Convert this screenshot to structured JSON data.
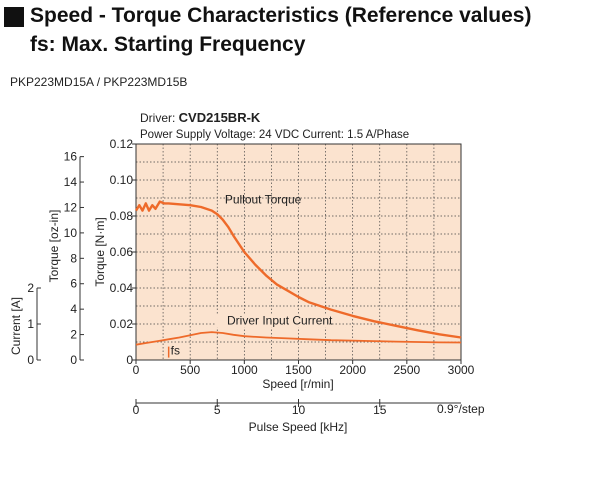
{
  "header": {
    "title_line1": "Speed - Torque Characteristics (Reference values)",
    "title_line2": "fs: Max. Starting Frequency"
  },
  "model_label": "PKP223MD15A / PKP223MD15B",
  "driver": {
    "prefix": "Driver: ",
    "name": "CVD215BR-K"
  },
  "conditions": "Power Supply Voltage: 24 VDC  Current: 1.5 A/Phase",
  "colors": {
    "plot_bg": "#fbe3cf",
    "curve": "#ee6a2a",
    "grid": "#444444"
  },
  "chart_data": {
    "type": "line",
    "xlabel": "Speed [r/min]",
    "x2label": "Pulse Speed [kHz]",
    "x2_unit_note": "0.9°/step",
    "ylabel_left": "Torque [N·m]",
    "ylabel_oz": "Torque [oz-in]",
    "ylabel_current": "Current [A]",
    "xlim": [
      0,
      3000
    ],
    "ylim": [
      0,
      0.12
    ],
    "x_ticks": [
      "0",
      "500",
      "1000",
      "1500",
      "2000",
      "2500",
      "3000"
    ],
    "y_ticks": [
      "0",
      "0.02",
      "0.04",
      "0.06",
      "0.08",
      "0.10",
      "0.12"
    ],
    "oz_ticks": [
      "0",
      "2",
      "4",
      "6",
      "8",
      "10",
      "12",
      "14",
      "16"
    ],
    "current_ticks": [
      "0",
      "1",
      "2"
    ],
    "x2_ticks": [
      "0",
      "5",
      "10",
      "15"
    ],
    "grid": true,
    "series": [
      {
        "name": "Pullout Torque",
        "x": [
          0,
          30,
          60,
          90,
          120,
          150,
          180,
          220,
          260,
          300,
          400,
          500,
          600,
          700,
          750,
          800,
          850,
          900,
          1000,
          1100,
          1200,
          1300,
          1400,
          1500,
          1600,
          1800,
          2000,
          2200,
          2400,
          2600,
          2800,
          3000
        ],
        "y": [
          0.083,
          0.086,
          0.083,
          0.087,
          0.083,
          0.086,
          0.084,
          0.088,
          0.087,
          0.087,
          0.0865,
          0.086,
          0.085,
          0.083,
          0.081,
          0.078,
          0.074,
          0.069,
          0.06,
          0.053,
          0.047,
          0.042,
          0.0385,
          0.035,
          0.032,
          0.028,
          0.0245,
          0.0215,
          0.019,
          0.0165,
          0.0143,
          0.0125
        ]
      },
      {
        "name": "Driver Input Current",
        "x": [
          0,
          100,
          200,
          300,
          400,
          500,
          600,
          700,
          800,
          900,
          1000,
          1200,
          1400,
          1600,
          1800,
          2000,
          2200,
          2400,
          2600,
          2800,
          3000
        ],
        "y": [
          0.0085,
          0.0095,
          0.0105,
          0.0115,
          0.0125,
          0.0138,
          0.015,
          0.0155,
          0.015,
          0.014,
          0.0132,
          0.0125,
          0.012,
          0.0115,
          0.011,
          0.0108,
          0.0105,
          0.0102,
          0.01,
          0.0098,
          0.0097
        ]
      }
    ],
    "annotations": [
      {
        "text": "Pullout Torque",
        "at": [
          820,
          0.087
        ]
      },
      {
        "text": "Driver Input Current",
        "at": [
          840,
          0.0198
        ]
      },
      {
        "text": "fs",
        "at": [
          320,
          0.003
        ]
      }
    ]
  }
}
